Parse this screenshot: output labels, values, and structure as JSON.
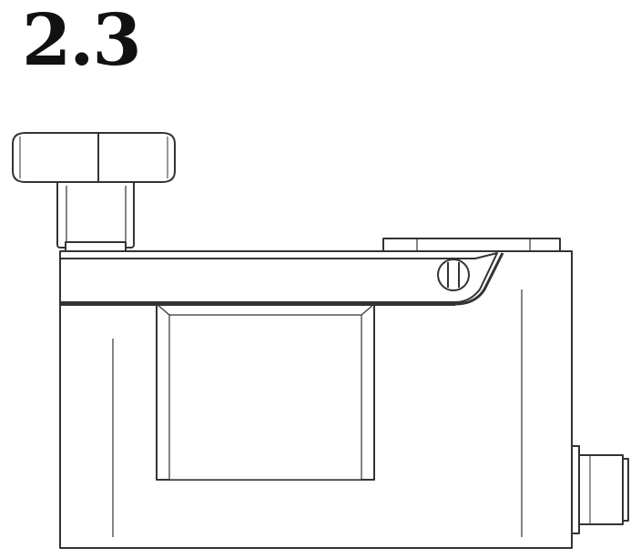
{
  "step": {
    "number": "2.3"
  },
  "colors": {
    "line": "#333333",
    "fill": "#ffffff"
  }
}
